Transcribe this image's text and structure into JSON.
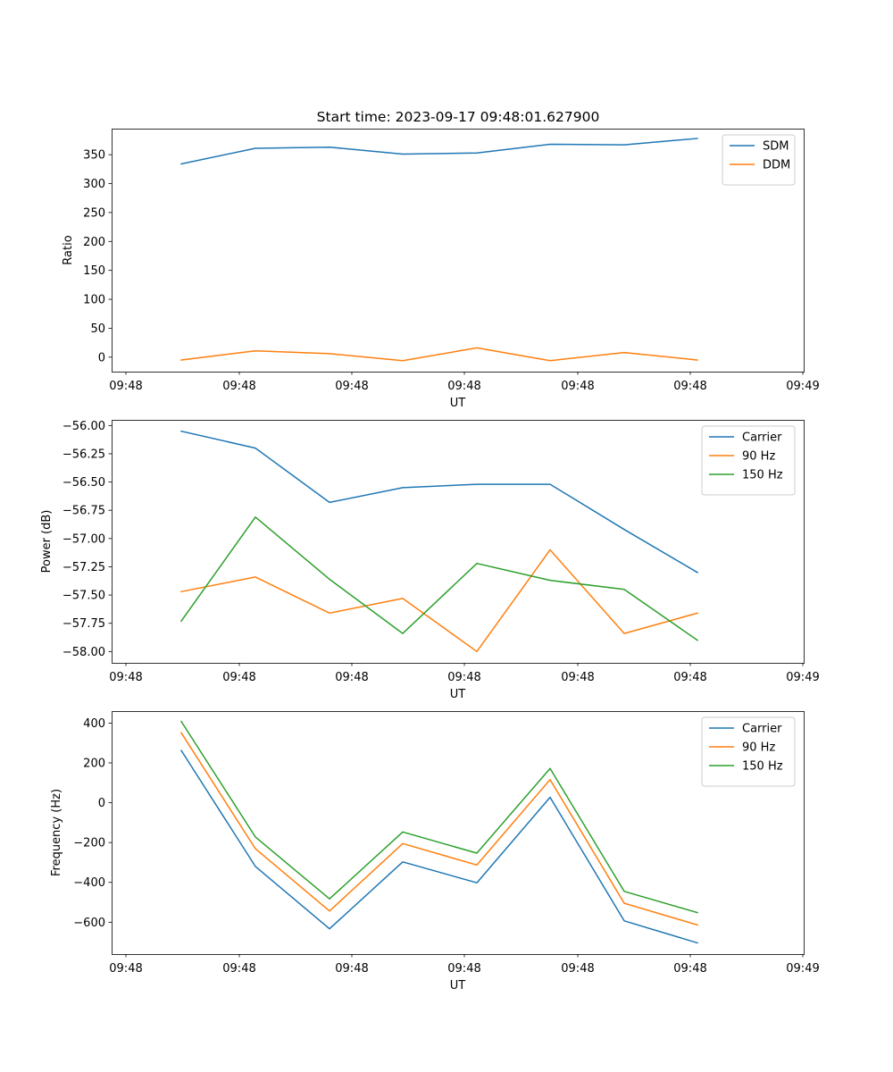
{
  "figure": {
    "title": "Start time: 2023-09-17 09:48:01.627900"
  },
  "chart_data": [
    {
      "type": "line",
      "xlabel": "UT",
      "ylabel": "Ratio",
      "x_tick_labels": [
        "09:48",
        "09:48",
        "09:48",
        "09:48",
        "09:48",
        "09:48",
        "09:48"
      ],
      "x_tick_labels_extra": "09:49",
      "yticks": [
        0,
        50,
        100,
        150,
        200,
        250,
        300,
        350
      ],
      "ylim": [
        -25,
        395
      ],
      "legend_position": "upper right",
      "series": [
        {
          "name": "SDM",
          "color": "#1f77b4",
          "values": [
            334,
            361,
            363,
            351,
            353,
            368,
            367,
            378
          ]
        },
        {
          "name": "DDM",
          "color": "#ff7f0e",
          "values": [
            -5,
            11,
            6,
            -6,
            16,
            -6,
            8,
            -5
          ]
        }
      ]
    },
    {
      "type": "line",
      "xlabel": "UT",
      "ylabel": "Power (dB)",
      "x_tick_labels": [
        "09:48",
        "09:48",
        "09:48",
        "09:48",
        "09:48",
        "09:48",
        "09:48"
      ],
      "x_tick_labels_extra": "09:49",
      "yticks": [
        -58.0,
        -57.75,
        -57.5,
        -57.25,
        -57.0,
        -56.75,
        -56.5,
        -56.25,
        -56.0
      ],
      "ytick_labels": [
        "−58.00",
        "−57.75",
        "−57.50",
        "−57.25",
        "−57.00",
        "−56.75",
        "−56.50",
        "−56.25",
        "−56.00"
      ],
      "ylim": [
        -58.1,
        -55.95
      ],
      "legend_position": "upper right",
      "series": [
        {
          "name": "Carrier",
          "color": "#1f77b4",
          "values": [
            -56.05,
            -56.2,
            -56.68,
            -56.55,
            -56.52,
            -56.52,
            -56.92,
            -57.3
          ]
        },
        {
          "name": "90 Hz",
          "color": "#ff7f0e",
          "values": [
            -57.47,
            -57.34,
            -57.66,
            -57.53,
            -58.0,
            -57.1,
            -57.84,
            -57.66
          ]
        },
        {
          "name": "150 Hz",
          "color": "#2ca02c",
          "values": [
            -57.73,
            -56.81,
            -57.36,
            -57.84,
            -57.22,
            -57.37,
            -57.45,
            -57.9
          ]
        }
      ]
    },
    {
      "type": "line",
      "xlabel": "UT",
      "ylabel": "Frequency (Hz)",
      "x_tick_labels": [
        "09:48",
        "09:48",
        "09:48",
        "09:48",
        "09:48",
        "09:48",
        "09:48"
      ],
      "x_tick_labels_extra": "09:49",
      "yticks": [
        -600,
        -400,
        -200,
        0,
        200,
        400
      ],
      "ytick_labels": [
        "−600",
        "−400",
        "−200",
        "0",
        "200",
        "400"
      ],
      "ylim": [
        -760,
        460
      ],
      "legend_position": "upper right",
      "series": [
        {
          "name": "Carrier",
          "color": "#1f77b4",
          "values": [
            262,
            -320,
            -633,
            -297,
            -402,
            27,
            -593,
            -704
          ]
        },
        {
          "name": "90 Hz",
          "color": "#ff7f0e",
          "values": [
            351,
            -231,
            -544,
            -205,
            -313,
            116,
            -505,
            -614
          ]
        },
        {
          "name": "150 Hz",
          "color": "#2ca02c",
          "values": [
            408,
            -172,
            -483,
            -147,
            -253,
            172,
            -445,
            -552
          ]
        }
      ]
    }
  ]
}
